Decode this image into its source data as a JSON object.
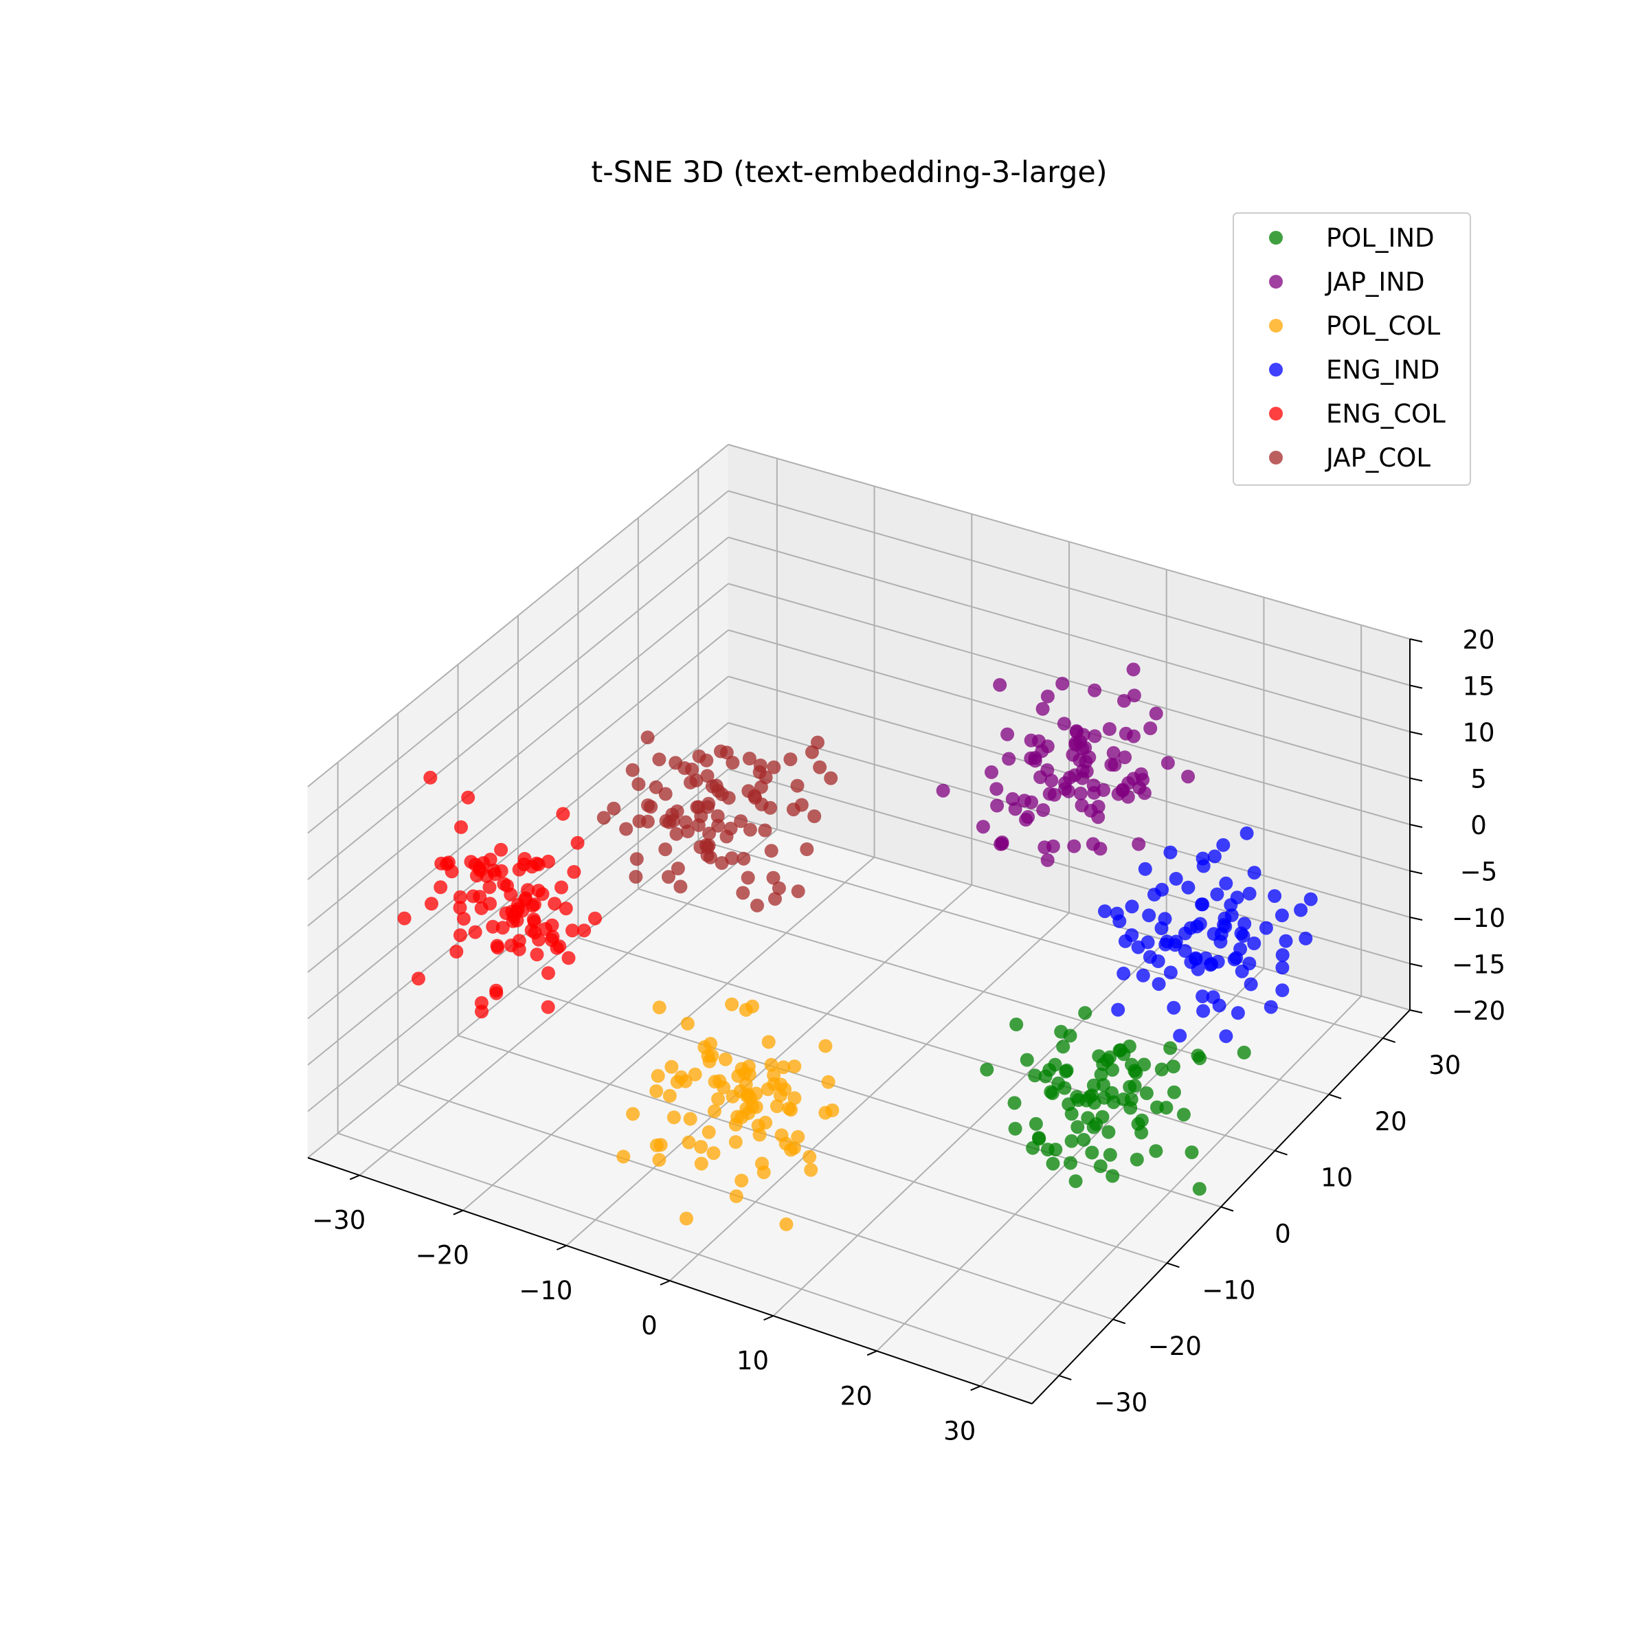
{
  "chart_data": {
    "type": "scatter",
    "projection": "3d",
    "title": "t-SNE 3D (text-embedding-3-large)",
    "xlabel": "",
    "ylabel": "",
    "zlabel": "",
    "xlim": [
      -35,
      35
    ],
    "ylim": [
      -35,
      35
    ],
    "zlim": [
      -20,
      20
    ],
    "x_ticks": [
      "−30",
      "−20",
      "−10",
      "0",
      "10",
      "20",
      "30"
    ],
    "y_ticks": [
      "−30",
      "−20",
      "−10",
      "0",
      "10",
      "20",
      "30"
    ],
    "z_ticks": [
      "−20",
      "−15",
      "−10",
      "−5",
      "0",
      "5",
      "10",
      "15",
      "20"
    ],
    "grid": true,
    "legend_position": "top-right",
    "point_alpha": 0.75,
    "series": [
      {
        "name": "POL_IND",
        "color": "#008000",
        "seed": 11,
        "count": 90,
        "center": [
          22,
          2,
          -14
        ],
        "spread": [
          7,
          7,
          6
        ]
      },
      {
        "name": "JAP_IND",
        "color": "#800080",
        "seed": 23,
        "count": 95,
        "center": [
          8,
          20,
          6
        ],
        "spread": [
          7,
          7,
          6
        ]
      },
      {
        "name": "POL_COL",
        "color": "#FFA500",
        "seed": 37,
        "count": 90,
        "center": [
          -2,
          -18,
          -12
        ],
        "spread": [
          7,
          7,
          6
        ]
      },
      {
        "name": "ENG_IND",
        "color": "#0000FF",
        "seed": 41,
        "count": 90,
        "center": [
          24,
          18,
          -5
        ],
        "spread": [
          7,
          7,
          6
        ]
      },
      {
        "name": "ENG_COL",
        "color": "#FF0000",
        "seed": 53,
        "count": 95,
        "center": [
          -25,
          -18,
          2
        ],
        "spread": [
          7,
          7,
          6
        ]
      },
      {
        "name": "JAP_COL",
        "color": "#A52A2A",
        "seed": 67,
        "count": 95,
        "center": [
          -15,
          -2,
          6
        ],
        "spread": [
          7,
          7,
          6
        ]
      }
    ]
  }
}
